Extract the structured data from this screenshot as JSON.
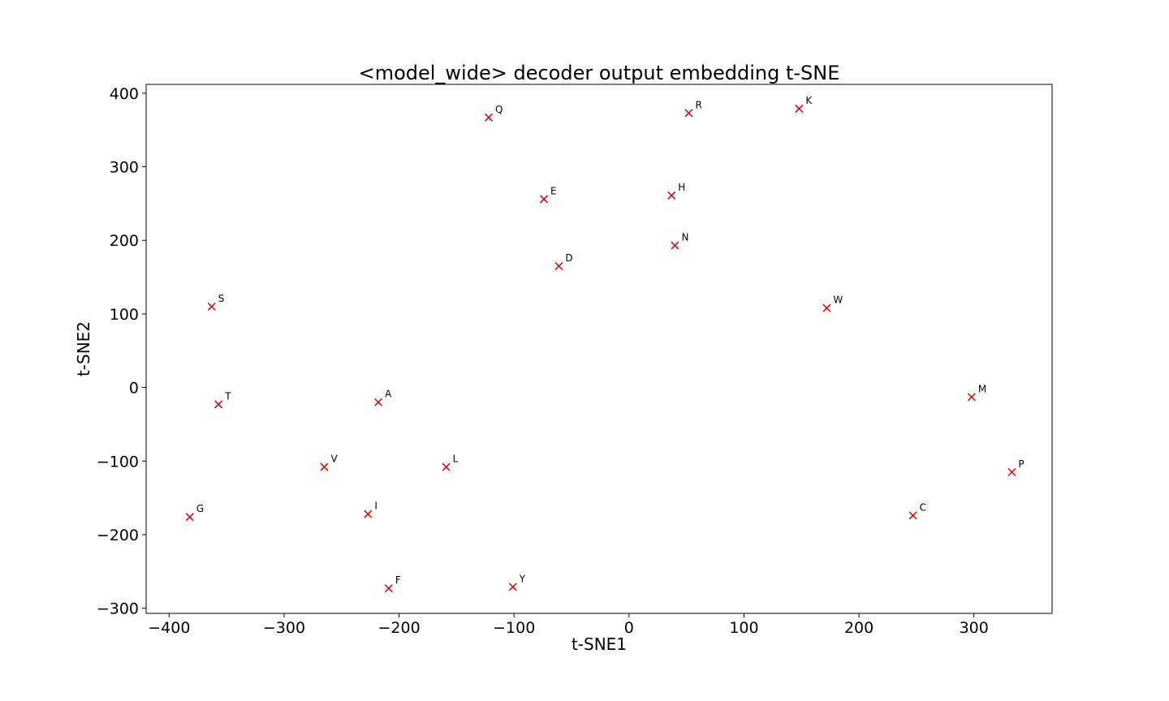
{
  "chart_data": {
    "type": "scatter",
    "title": "<model_wide> decoder output embedding t-SNE",
    "xlabel": "t-SNE1",
    "ylabel": "t-SNE2",
    "xlim": [
      -420,
      368
    ],
    "ylim": [
      -307,
      412
    ],
    "xticks": [
      -400,
      -300,
      -200,
      -100,
      0,
      100,
      200,
      300
    ],
    "yticks": [
      -300,
      -200,
      -100,
      0,
      100,
      200,
      300,
      400
    ],
    "grid": false,
    "marker": "x",
    "marker_color": "#e00000",
    "points": [
      {
        "label": "Q",
        "x": -122,
        "y": 367
      },
      {
        "label": "R",
        "x": 52,
        "y": 373
      },
      {
        "label": "K",
        "x": 148,
        "y": 379
      },
      {
        "label": "E",
        "x": -74,
        "y": 256
      },
      {
        "label": "H",
        "x": 37,
        "y": 261
      },
      {
        "label": "N",
        "x": 40,
        "y": 193
      },
      {
        "label": "D",
        "x": -61,
        "y": 165
      },
      {
        "label": "S",
        "x": -363,
        "y": 110
      },
      {
        "label": "W",
        "x": 172,
        "y": 108
      },
      {
        "label": "T",
        "x": -357,
        "y": -23
      },
      {
        "label": "A",
        "x": -218,
        "y": -20
      },
      {
        "label": "M",
        "x": 298,
        "y": -13
      },
      {
        "label": "V",
        "x": -265,
        "y": -108
      },
      {
        "label": "L",
        "x": -159,
        "y": -108
      },
      {
        "label": "P",
        "x": 333,
        "y": -115
      },
      {
        "label": "G",
        "x": -382,
        "y": -176
      },
      {
        "label": "I",
        "x": -227,
        "y": -172
      },
      {
        "label": "C",
        "x": 247,
        "y": -174
      },
      {
        "label": "F",
        "x": -209,
        "y": -273
      },
      {
        "label": "Y",
        "x": -101,
        "y": -271
      }
    ]
  }
}
